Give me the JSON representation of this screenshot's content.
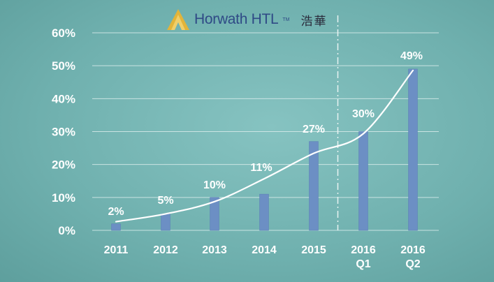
{
  "brand": {
    "name": "Horwath HTL",
    "tm": "TM",
    "cn": "浩華"
  },
  "colors": {
    "bar": "#6c8fc4",
    "bar_edge": "#5b7fb5",
    "curve": "#ffffff",
    "grid": "#d9eceb",
    "divider": "#e8f3f2",
    "logo_gold": "#e2b43a"
  },
  "chart_data": {
    "type": "bar",
    "title": "",
    "xlabel": "",
    "ylabel": "",
    "categories": [
      [
        "2011"
      ],
      [
        "2012"
      ],
      [
        "2013"
      ],
      [
        "2014"
      ],
      [
        "2015"
      ],
      [
        "2016",
        "Q1"
      ],
      [
        "2016",
        "Q2"
      ]
    ],
    "values": [
      2,
      5,
      10,
      11,
      27,
      30,
      49
    ],
    "data_labels": [
      "2%",
      "5%",
      "10%",
      "11%",
      "27%",
      "30%",
      "49%"
    ],
    "ylim": [
      0,
      60
    ],
    "yticks": [
      0,
      10,
      20,
      30,
      40,
      50,
      60
    ],
    "ytick_labels": [
      "0%",
      "10%",
      "20%",
      "30%",
      "40%",
      "50%",
      "60%"
    ],
    "grid": true,
    "trend_curve": true,
    "divider_after_category": 5
  }
}
